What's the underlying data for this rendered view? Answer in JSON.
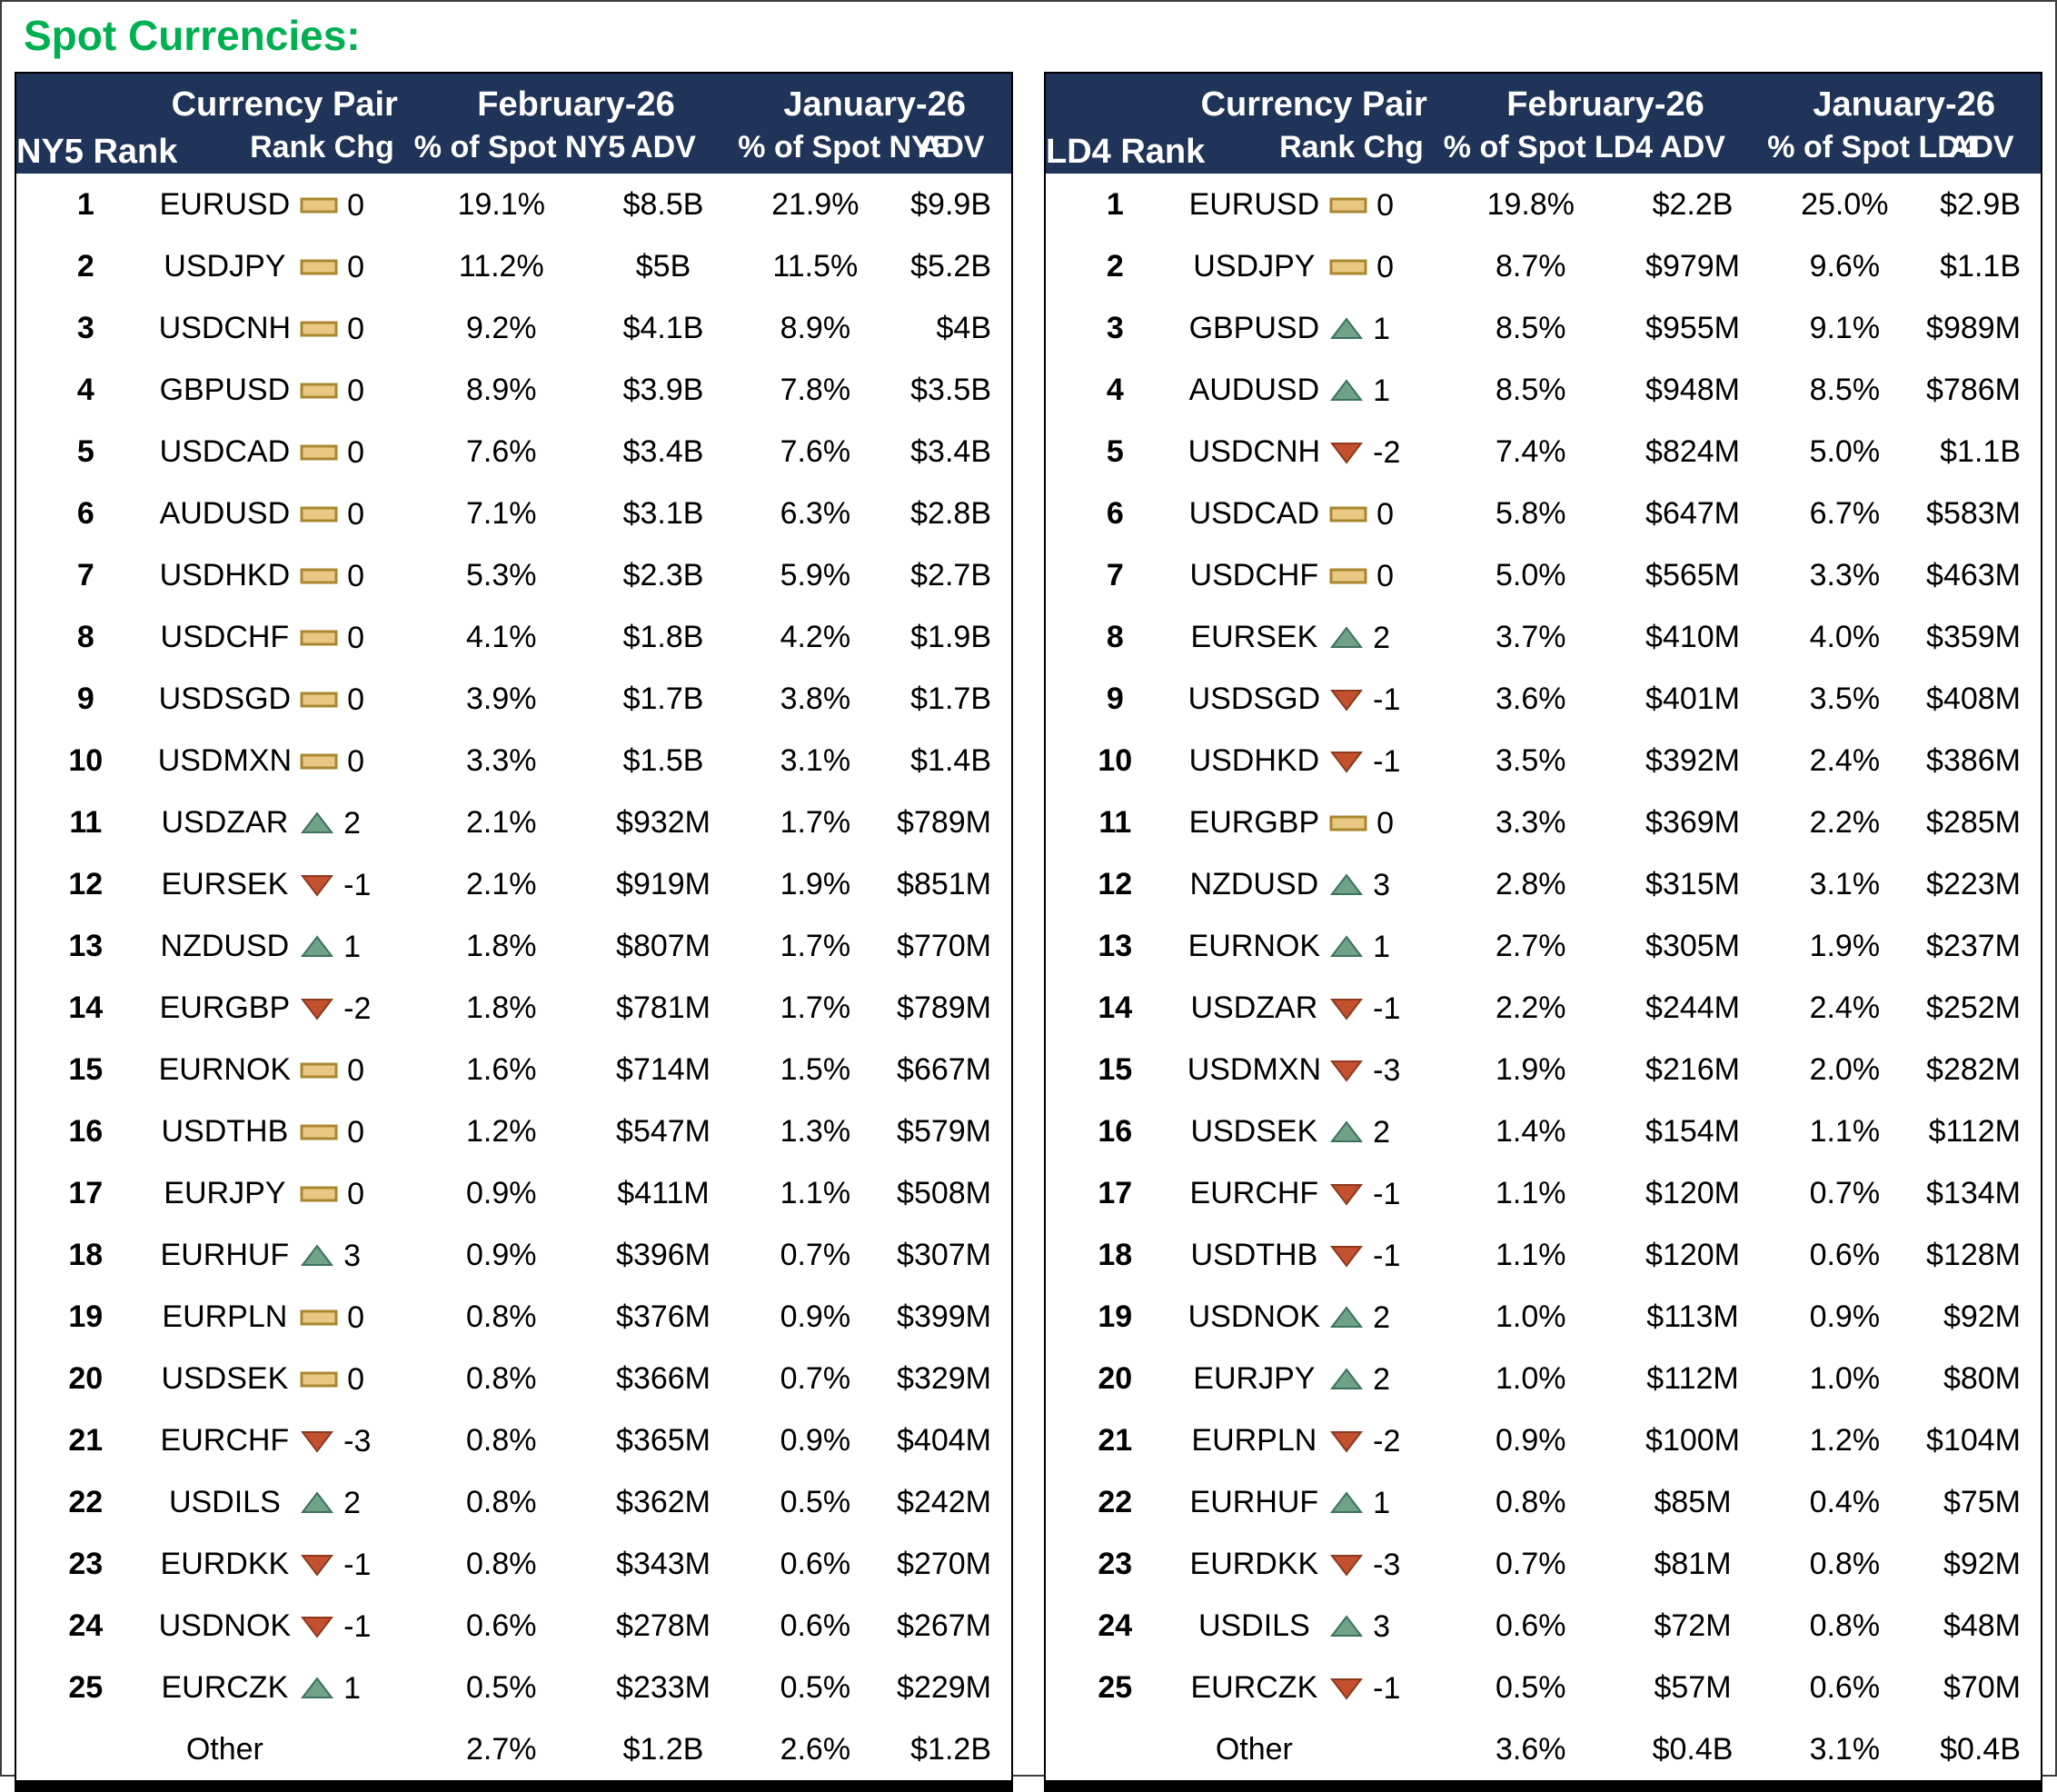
{
  "title": "Spot Currencies:",
  "colors": {
    "title_green": "#00B050",
    "header_navy": "#1F3458",
    "body_text": "#000000"
  },
  "icons": {
    "up": {
      "name": "rank-up-icon",
      "fill": "#6FA287",
      "stroke": "#3E7260"
    },
    "down": {
      "name": "rank-down-icon",
      "fill": "#C3512E",
      "stroke": "#8C3A1F"
    },
    "flat": {
      "name": "rank-flat-icon",
      "fill": "#EAC883",
      "stroke": "#A9872F"
    }
  },
  "tables": [
    {
      "rank_label": "NY5 Rank",
      "pair_label": "Currency Pair",
      "rank_chg_label": "Rank Chg",
      "feb_label": "February-26",
      "jan_label": "January-26",
      "pct_label": "% of Spot NY5",
      "adv_label": "ADV",
      "rows": [
        {
          "rank": "1",
          "pair": "EURUSD",
          "chg": "0",
          "feb_pct": "19.1%",
          "feb_adv": "$8.5B",
          "jan_pct": "21.9%",
          "jan_adv": "$9.9B"
        },
        {
          "rank": "2",
          "pair": "USDJPY",
          "chg": "0",
          "feb_pct": "11.2%",
          "feb_adv": "$5B",
          "jan_pct": "11.5%",
          "jan_adv": "$5.2B"
        },
        {
          "rank": "3",
          "pair": "USDCNH",
          "chg": "0",
          "feb_pct": "9.2%",
          "feb_adv": "$4.1B",
          "jan_pct": "8.9%",
          "jan_adv": "$4B"
        },
        {
          "rank": "4",
          "pair": "GBPUSD",
          "chg": "0",
          "feb_pct": "8.9%",
          "feb_adv": "$3.9B",
          "jan_pct": "7.8%",
          "jan_adv": "$3.5B"
        },
        {
          "rank": "5",
          "pair": "USDCAD",
          "chg": "0",
          "feb_pct": "7.6%",
          "feb_adv": "$3.4B",
          "jan_pct": "7.6%",
          "jan_adv": "$3.4B"
        },
        {
          "rank": "6",
          "pair": "AUDUSD",
          "chg": "0",
          "feb_pct": "7.1%",
          "feb_adv": "$3.1B",
          "jan_pct": "6.3%",
          "jan_adv": "$2.8B"
        },
        {
          "rank": "7",
          "pair": "USDHKD",
          "chg": "0",
          "feb_pct": "5.3%",
          "feb_adv": "$2.3B",
          "jan_pct": "5.9%",
          "jan_adv": "$2.7B"
        },
        {
          "rank": "8",
          "pair": "USDCHF",
          "chg": "0",
          "feb_pct": "4.1%",
          "feb_adv": "$1.8B",
          "jan_pct": "4.2%",
          "jan_adv": "$1.9B"
        },
        {
          "rank": "9",
          "pair": "USDSGD",
          "chg": "0",
          "feb_pct": "3.9%",
          "feb_adv": "$1.7B",
          "jan_pct": "3.8%",
          "jan_adv": "$1.7B"
        },
        {
          "rank": "10",
          "pair": "USDMXN",
          "chg": "0",
          "feb_pct": "3.3%",
          "feb_adv": "$1.5B",
          "jan_pct": "3.1%",
          "jan_adv": "$1.4B"
        },
        {
          "rank": "11",
          "pair": "USDZAR",
          "chg": "2",
          "feb_pct": "2.1%",
          "feb_adv": "$932M",
          "jan_pct": "1.7%",
          "jan_adv": "$789M"
        },
        {
          "rank": "12",
          "pair": "EURSEK",
          "chg": "-1",
          "feb_pct": "2.1%",
          "feb_adv": "$919M",
          "jan_pct": "1.9%",
          "jan_adv": "$851M"
        },
        {
          "rank": "13",
          "pair": "NZDUSD",
          "chg": "1",
          "feb_pct": "1.8%",
          "feb_adv": "$807M",
          "jan_pct": "1.7%",
          "jan_adv": "$770M"
        },
        {
          "rank": "14",
          "pair": "EURGBP",
          "chg": "-2",
          "feb_pct": "1.8%",
          "feb_adv": "$781M",
          "jan_pct": "1.7%",
          "jan_adv": "$789M"
        },
        {
          "rank": "15",
          "pair": "EURNOK",
          "chg": "0",
          "feb_pct": "1.6%",
          "feb_adv": "$714M",
          "jan_pct": "1.5%",
          "jan_adv": "$667M"
        },
        {
          "rank": "16",
          "pair": "USDTHB",
          "chg": "0",
          "feb_pct": "1.2%",
          "feb_adv": "$547M",
          "jan_pct": "1.3%",
          "jan_adv": "$579M"
        },
        {
          "rank": "17",
          "pair": "EURJPY",
          "chg": "0",
          "feb_pct": "0.9%",
          "feb_adv": "$411M",
          "jan_pct": "1.1%",
          "jan_adv": "$508M"
        },
        {
          "rank": "18",
          "pair": "EURHUF",
          "chg": "3",
          "feb_pct": "0.9%",
          "feb_adv": "$396M",
          "jan_pct": "0.7%",
          "jan_adv": "$307M"
        },
        {
          "rank": "19",
          "pair": "EURPLN",
          "chg": "0",
          "feb_pct": "0.8%",
          "feb_adv": "$376M",
          "jan_pct": "0.9%",
          "jan_adv": "$399M"
        },
        {
          "rank": "20",
          "pair": "USDSEK",
          "chg": "0",
          "feb_pct": "0.8%",
          "feb_adv": "$366M",
          "jan_pct": "0.7%",
          "jan_adv": "$329M"
        },
        {
          "rank": "21",
          "pair": "EURCHF",
          "chg": "-3",
          "feb_pct": "0.8%",
          "feb_adv": "$365M",
          "jan_pct": "0.9%",
          "jan_adv": "$404M"
        },
        {
          "rank": "22",
          "pair": "USDILS",
          "chg": "2",
          "feb_pct": "0.8%",
          "feb_adv": "$362M",
          "jan_pct": "0.5%",
          "jan_adv": "$242M"
        },
        {
          "rank": "23",
          "pair": "EURDKK",
          "chg": "-1",
          "feb_pct": "0.8%",
          "feb_adv": "$343M",
          "jan_pct": "0.6%",
          "jan_adv": "$270M"
        },
        {
          "rank": "24",
          "pair": "USDNOK",
          "chg": "-1",
          "feb_pct": "0.6%",
          "feb_adv": "$278M",
          "jan_pct": "0.6%",
          "jan_adv": "$267M"
        },
        {
          "rank": "25",
          "pair": "EURCZK",
          "chg": "1",
          "feb_pct": "0.5%",
          "feb_adv": "$233M",
          "jan_pct": "0.5%",
          "jan_adv": "$229M"
        }
      ],
      "other": {
        "label": "Other",
        "feb_pct": "2.7%",
        "feb_adv": "$1.2B",
        "jan_pct": "2.6%",
        "jan_adv": "$1.2B"
      }
    },
    {
      "rank_label": "LD4 Rank",
      "pair_label": "Currency Pair",
      "rank_chg_label": "Rank Chg",
      "feb_label": "February-26",
      "jan_label": "January-26",
      "pct_label": "% of Spot LD4",
      "adv_label": "ADV",
      "rows": [
        {
          "rank": "1",
          "pair": "EURUSD",
          "chg": "0",
          "feb_pct": "19.8%",
          "feb_adv": "$2.2B",
          "jan_pct": "25.0%",
          "jan_adv": "$2.9B"
        },
        {
          "rank": "2",
          "pair": "USDJPY",
          "chg": "0",
          "feb_pct": "8.7%",
          "feb_adv": "$979M",
          "jan_pct": "9.6%",
          "jan_adv": "$1.1B"
        },
        {
          "rank": "3",
          "pair": "GBPUSD",
          "chg": "1",
          "feb_pct": "8.5%",
          "feb_adv": "$955M",
          "jan_pct": "9.1%",
          "jan_adv": "$989M"
        },
        {
          "rank": "4",
          "pair": "AUDUSD",
          "chg": "1",
          "feb_pct": "8.5%",
          "feb_adv": "$948M",
          "jan_pct": "8.5%",
          "jan_adv": "$786M"
        },
        {
          "rank": "5",
          "pair": "USDCNH",
          "chg": "-2",
          "feb_pct": "7.4%",
          "feb_adv": "$824M",
          "jan_pct": "5.0%",
          "jan_adv": "$1.1B"
        },
        {
          "rank": "6",
          "pair": "USDCAD",
          "chg": "0",
          "feb_pct": "5.8%",
          "feb_adv": "$647M",
          "jan_pct": "6.7%",
          "jan_adv": "$583M"
        },
        {
          "rank": "7",
          "pair": "USDCHF",
          "chg": "0",
          "feb_pct": "5.0%",
          "feb_adv": "$565M",
          "jan_pct": "3.3%",
          "jan_adv": "$463M"
        },
        {
          "rank": "8",
          "pair": "EURSEK",
          "chg": "2",
          "feb_pct": "3.7%",
          "feb_adv": "$410M",
          "jan_pct": "4.0%",
          "jan_adv": "$359M"
        },
        {
          "rank": "9",
          "pair": "USDSGD",
          "chg": "-1",
          "feb_pct": "3.6%",
          "feb_adv": "$401M",
          "jan_pct": "3.5%",
          "jan_adv": "$408M"
        },
        {
          "rank": "10",
          "pair": "USDHKD",
          "chg": "-1",
          "feb_pct": "3.5%",
          "feb_adv": "$392M",
          "jan_pct": "2.4%",
          "jan_adv": "$386M"
        },
        {
          "rank": "11",
          "pair": "EURGBP",
          "chg": "0",
          "feb_pct": "3.3%",
          "feb_adv": "$369M",
          "jan_pct": "2.2%",
          "jan_adv": "$285M"
        },
        {
          "rank": "12",
          "pair": "NZDUSD",
          "chg": "3",
          "feb_pct": "2.8%",
          "feb_adv": "$315M",
          "jan_pct": "3.1%",
          "jan_adv": "$223M"
        },
        {
          "rank": "13",
          "pair": "EURNOK",
          "chg": "1",
          "feb_pct": "2.7%",
          "feb_adv": "$305M",
          "jan_pct": "1.9%",
          "jan_adv": "$237M"
        },
        {
          "rank": "14",
          "pair": "USDZAR",
          "chg": "-1",
          "feb_pct": "2.2%",
          "feb_adv": "$244M",
          "jan_pct": "2.4%",
          "jan_adv": "$252M"
        },
        {
          "rank": "15",
          "pair": "USDMXN",
          "chg": "-3",
          "feb_pct": "1.9%",
          "feb_adv": "$216M",
          "jan_pct": "2.0%",
          "jan_adv": "$282M"
        },
        {
          "rank": "16",
          "pair": "USDSEK",
          "chg": "2",
          "feb_pct": "1.4%",
          "feb_adv": "$154M",
          "jan_pct": "1.1%",
          "jan_adv": "$112M"
        },
        {
          "rank": "17",
          "pair": "EURCHF",
          "chg": "-1",
          "feb_pct": "1.1%",
          "feb_adv": "$120M",
          "jan_pct": "0.7%",
          "jan_adv": "$134M"
        },
        {
          "rank": "18",
          "pair": "USDTHB",
          "chg": "-1",
          "feb_pct": "1.1%",
          "feb_adv": "$120M",
          "jan_pct": "0.6%",
          "jan_adv": "$128M"
        },
        {
          "rank": "19",
          "pair": "USDNOK",
          "chg": "2",
          "feb_pct": "1.0%",
          "feb_adv": "$113M",
          "jan_pct": "0.9%",
          "jan_adv": "$92M"
        },
        {
          "rank": "20",
          "pair": "EURJPY",
          "chg": "2",
          "feb_pct": "1.0%",
          "feb_adv": "$112M",
          "jan_pct": "1.0%",
          "jan_adv": "$80M"
        },
        {
          "rank": "21",
          "pair": "EURPLN",
          "chg": "-2",
          "feb_pct": "0.9%",
          "feb_adv": "$100M",
          "jan_pct": "1.2%",
          "jan_adv": "$104M"
        },
        {
          "rank": "22",
          "pair": "EURHUF",
          "chg": "1",
          "feb_pct": "0.8%",
          "feb_adv": "$85M",
          "jan_pct": "0.4%",
          "jan_adv": "$75M"
        },
        {
          "rank": "23",
          "pair": "EURDKK",
          "chg": "-3",
          "feb_pct": "0.7%",
          "feb_adv": "$81M",
          "jan_pct": "0.8%",
          "jan_adv": "$92M"
        },
        {
          "rank": "24",
          "pair": "USDILS",
          "chg": "3",
          "feb_pct": "0.6%",
          "feb_adv": "$72M",
          "jan_pct": "0.8%",
          "jan_adv": "$48M"
        },
        {
          "rank": "25",
          "pair": "EURCZK",
          "chg": "-1",
          "feb_pct": "0.5%",
          "feb_adv": "$57M",
          "jan_pct": "0.6%",
          "jan_adv": "$70M"
        }
      ],
      "other": {
        "label": "Other",
        "feb_pct": "3.6%",
        "feb_adv": "$0.4B",
        "jan_pct": "3.1%",
        "jan_adv": "$0.4B"
      }
    }
  ]
}
